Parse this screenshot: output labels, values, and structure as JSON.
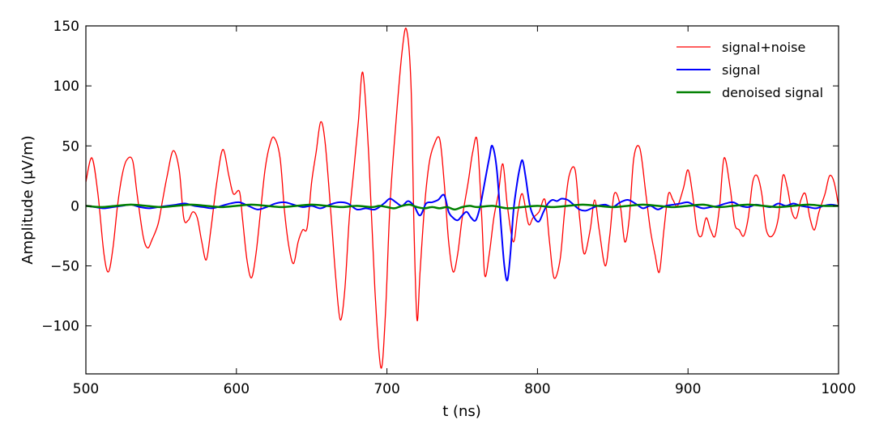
{
  "chart_data": {
    "type": "line",
    "title": "",
    "xlabel": "t (ns)",
    "ylabel": "Amplitude (μV/m)",
    "xlim": [
      500,
      1000
    ],
    "ylim": [
      -140,
      150
    ],
    "xticks": [
      500,
      600,
      700,
      800,
      900,
      1000
    ],
    "yticks": [
      150,
      100,
      50,
      0,
      -50,
      -100
    ],
    "ytick_labels": [
      "150",
      "100",
      "50",
      "0",
      "−50",
      "−100"
    ],
    "grid": false,
    "legend_position": "top-right",
    "series": [
      {
        "name": "signal+noise",
        "color": "#ff0000",
        "line_width": 1.3,
        "x": [
          500,
          504,
          508,
          512,
          515,
          518,
          521,
          524,
          527,
          531,
          534,
          538,
          541,
          544,
          548,
          551,
          554,
          558,
          562,
          565,
          568,
          571,
          574,
          577,
          580,
          583,
          587,
          591,
          595,
          598,
          602,
          604,
          607,
          610,
          613,
          616,
          619,
          622,
          625,
          629,
          632,
          635,
          638,
          641,
          644,
          647,
          650,
          653,
          656,
          659,
          663,
          666,
          669,
          672,
          675,
          678,
          681,
          684,
          688,
          692,
          696,
          699,
          702,
          706,
          710,
          713,
          716,
          718,
          720,
          722,
          725,
          728,
          731,
          735,
          738,
          741,
          744,
          747,
          750,
          754,
          757,
          760,
          763,
          765,
          768,
          771,
          774,
          777,
          780,
          784,
          787,
          790,
          794,
          797,
          801,
          805,
          808,
          811,
          815,
          818,
          821,
          825,
          828,
          831,
          835,
          838,
          841,
          845,
          848,
          851,
          855,
          858,
          861,
          864,
          868,
          872,
          875,
          878,
          881,
          884,
          887,
          890,
          893,
          897,
          900,
          903,
          906,
          909,
          912,
          915,
          918,
          921,
          924,
          928,
          931,
          934,
          937,
          940,
          943,
          946,
          949,
          952,
          956,
          960,
          963,
          966,
          969,
          972,
          975,
          978,
          981,
          984,
          987,
          991,
          994,
          997,
          1000
        ],
        "y": [
          20,
          40,
          10,
          -40,
          -55,
          -35,
          0,
          25,
          38,
          38,
          10,
          -25,
          -35,
          -28,
          -15,
          5,
          25,
          46,
          30,
          -10,
          -12,
          -5,
          -10,
          -30,
          -45,
          -20,
          20,
          47,
          25,
          10,
          12,
          -10,
          -45,
          -60,
          -40,
          -5,
          30,
          50,
          57,
          40,
          -5,
          -35,
          -48,
          -30,
          -20,
          -18,
          20,
          45,
          70,
          52,
          -10,
          -60,
          -95,
          -70,
          -10,
          30,
          70,
          111,
          40,
          -70,
          -135,
          -90,
          0,
          70,
          128,
          147,
          100,
          -20,
          -95,
          -55,
          0,
          35,
          50,
          56,
          20,
          -30,
          -55,
          -40,
          -10,
          20,
          45,
          54,
          -10,
          -58,
          -40,
          -10,
          10,
          35,
          0,
          -30,
          -5,
          10,
          -15,
          -10,
          -5,
          5,
          -30,
          -60,
          -45,
          -5,
          25,
          30,
          -10,
          -40,
          -20,
          5,
          -20,
          -50,
          -25,
          10,
          0,
          -30,
          -10,
          40,
          48,
          10,
          -20,
          -40,
          -55,
          -20,
          10,
          5,
          0,
          15,
          30,
          10,
          -20,
          -25,
          -10,
          -20,
          -25,
          0,
          40,
          15,
          -15,
          -20,
          -25,
          -10,
          20,
          25,
          10,
          -20,
          -25,
          -10,
          25,
          15,
          -5,
          -10,
          5,
          10,
          -10,
          -20,
          -5,
          10,
          25,
          20,
          0
        ]
      },
      {
        "name": "signal",
        "color": "#0000ff",
        "line_width": 2,
        "x": [
          500,
          506,
          512,
          518,
          524,
          530,
          536,
          542,
          548,
          554,
          560,
          566,
          572,
          578,
          584,
          590,
          596,
          602,
          608,
          614,
          620,
          626,
          632,
          638,
          644,
          650,
          656,
          662,
          668,
          674,
          680,
          686,
          692,
          698,
          702,
          706,
          710,
          714,
          718,
          722,
          726,
          730,
          734,
          738,
          741,
          744,
          747,
          750,
          753,
          756,
          759,
          762,
          765,
          768,
          770,
          773,
          776,
          778,
          780,
          782,
          784,
          786,
          788,
          790,
          792,
          795,
          798,
          801,
          804,
          807,
          810,
          813,
          816,
          820,
          824,
          828,
          832,
          836,
          840,
          845,
          850,
          855,
          860,
          865,
          870,
          875,
          880,
          885,
          890,
          895,
          900,
          905,
          910,
          915,
          920,
          925,
          930,
          935,
          940,
          945,
          950,
          955,
          960,
          965,
          970,
          975,
          980,
          985,
          990,
          995,
          1000
        ],
        "y": [
          0,
          -1,
          -2,
          -1,
          0,
          1,
          -1,
          -2,
          -1,
          0,
          1,
          2,
          0,
          -1,
          -2,
          0,
          2,
          3,
          0,
          -3,
          -1,
          2,
          3,
          1,
          -1,
          0,
          -2,
          1,
          3,
          2,
          -3,
          -2,
          -3,
          2,
          6,
          3,
          0,
          4,
          0,
          -8,
          2,
          3,
          5,
          9,
          -5,
          -10,
          -12,
          -8,
          -5,
          -10,
          -12,
          0,
          20,
          40,
          50,
          30,
          -20,
          -50,
          -62,
          -40,
          -5,
          15,
          30,
          38,
          25,
          0,
          -10,
          -13,
          -5,
          2,
          5,
          4,
          6,
          5,
          1,
          -3,
          -4,
          -2,
          0,
          1,
          -1,
          3,
          5,
          2,
          -2,
          0,
          -3,
          0,
          1,
          2,
          3,
          0,
          -2,
          -1,
          0,
          2,
          3,
          0,
          -1,
          1,
          0,
          -1,
          2,
          0,
          2,
          0,
          -1,
          -2,
          0,
          1,
          0
        ]
      },
      {
        "name": "denoised signal",
        "color": "#008000",
        "line_width": 2.5,
        "x": [
          500,
          510,
          520,
          530,
          540,
          550,
          560,
          570,
          580,
          590,
          600,
          610,
          620,
          630,
          640,
          650,
          660,
          670,
          680,
          690,
          695,
          700,
          705,
          710,
          715,
          720,
          725,
          730,
          735,
          740,
          745,
          750,
          755,
          760,
          770,
          780,
          790,
          800,
          810,
          820,
          830,
          840,
          850,
          860,
          870,
          880,
          890,
          900,
          910,
          920,
          930,
          940,
          950,
          960,
          970,
          980,
          990,
          1000
        ],
        "y": [
          0,
          -1,
          0,
          1,
          0,
          -1,
          0,
          1,
          0,
          -1,
          0,
          1,
          0,
          -1,
          0,
          1,
          0,
          -1,
          0,
          -1,
          0,
          -1,
          -2,
          0,
          1,
          -1,
          -2,
          -1,
          -2,
          -1,
          -3,
          -1,
          0,
          -1,
          0,
          -2,
          -1,
          0,
          -1,
          0,
          1,
          0,
          -1,
          0,
          1,
          0,
          -1,
          0,
          1,
          -1,
          0,
          1,
          0,
          -1,
          0,
          1,
          0,
          0
        ]
      }
    ]
  }
}
